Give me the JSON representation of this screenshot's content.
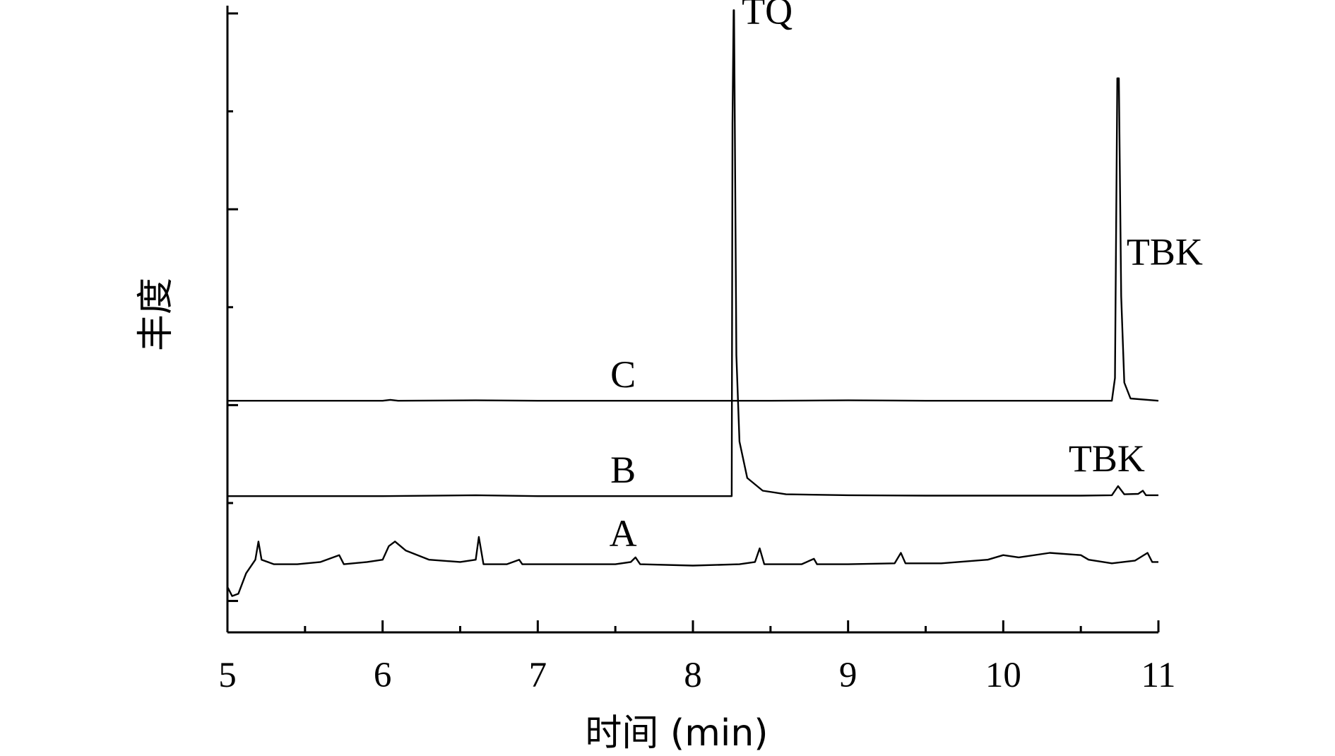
{
  "chart_data": {
    "type": "line",
    "xlabel": "时间 (min)",
    "ylabel": "丰度",
    "xlim": [
      5,
      11
    ],
    "x_ticks": [
      "5",
      "6",
      "7",
      "8",
      "9",
      "10",
      "11"
    ],
    "grid": false,
    "y_tick_labels": "none",
    "series": [
      {
        "name": "A",
        "points": [
          [
            5.0,
            0.1
          ],
          [
            5.03,
            0.08
          ],
          [
            5.07,
            0.085
          ],
          [
            5.12,
            0.13
          ],
          [
            5.18,
            0.16
          ],
          [
            5.2,
            0.2
          ],
          [
            5.22,
            0.16
          ],
          [
            5.3,
            0.15
          ],
          [
            5.45,
            0.15
          ],
          [
            5.6,
            0.155
          ],
          [
            5.72,
            0.17
          ],
          [
            5.75,
            0.15
          ],
          [
            5.9,
            0.155
          ],
          [
            6.0,
            0.16
          ],
          [
            6.04,
            0.19
          ],
          [
            6.08,
            0.2
          ],
          [
            6.15,
            0.18
          ],
          [
            6.3,
            0.16
          ],
          [
            6.5,
            0.155
          ],
          [
            6.6,
            0.16
          ],
          [
            6.62,
            0.21
          ],
          [
            6.65,
            0.15
          ],
          [
            6.8,
            0.15
          ],
          [
            6.88,
            0.16
          ],
          [
            6.9,
            0.15
          ],
          [
            7.2,
            0.15
          ],
          [
            7.5,
            0.15
          ],
          [
            7.6,
            0.155
          ],
          [
            7.63,
            0.165
          ],
          [
            7.66,
            0.15
          ],
          [
            8.0,
            0.147
          ],
          [
            8.3,
            0.15
          ],
          [
            8.4,
            0.155
          ],
          [
            8.43,
            0.185
          ],
          [
            8.46,
            0.15
          ],
          [
            8.7,
            0.15
          ],
          [
            8.78,
            0.162
          ],
          [
            8.8,
            0.15
          ],
          [
            9.0,
            0.15
          ],
          [
            9.3,
            0.152
          ],
          [
            9.34,
            0.175
          ],
          [
            9.37,
            0.152
          ],
          [
            9.6,
            0.152
          ],
          [
            9.9,
            0.16
          ],
          [
            10.0,
            0.17
          ],
          [
            10.1,
            0.165
          ],
          [
            10.3,
            0.175
          ],
          [
            10.5,
            0.17
          ],
          [
            10.55,
            0.16
          ],
          [
            10.7,
            0.152
          ],
          [
            10.85,
            0.158
          ],
          [
            10.93,
            0.175
          ],
          [
            10.96,
            0.155
          ],
          [
            11.0,
            0.155
          ]
        ]
      },
      {
        "name": "B",
        "points": [
          [
            5.0,
            0.3
          ],
          [
            5.5,
            0.3
          ],
          [
            6.0,
            0.3
          ],
          [
            6.6,
            0.302
          ],
          [
            7.0,
            0.3
          ],
          [
            7.5,
            0.3
          ],
          [
            8.0,
            0.3
          ],
          [
            8.25,
            0.3
          ],
          [
            8.255,
            1.12
          ],
          [
            8.262,
            1.37
          ],
          [
            8.265,
            1.37
          ],
          [
            8.27,
            1.12
          ],
          [
            8.28,
            0.61
          ],
          [
            8.3,
            0.42
          ],
          [
            8.35,
            0.34
          ],
          [
            8.45,
            0.312
          ],
          [
            8.6,
            0.304
          ],
          [
            9.0,
            0.302
          ],
          [
            9.5,
            0.301
          ],
          [
            10.0,
            0.301
          ],
          [
            10.5,
            0.301
          ],
          [
            10.7,
            0.302
          ],
          [
            10.74,
            0.322
          ],
          [
            10.78,
            0.304
          ],
          [
            10.87,
            0.305
          ],
          [
            10.9,
            0.312
          ],
          [
            10.92,
            0.302
          ],
          [
            11.0,
            0.302
          ]
        ]
      },
      {
        "name": "C",
        "points": [
          [
            5.0,
            0.51
          ],
          [
            6.0,
            0.51
          ],
          [
            6.05,
            0.512
          ],
          [
            6.1,
            0.51
          ],
          [
            6.6,
            0.511
          ],
          [
            7.0,
            0.51
          ],
          [
            8.0,
            0.51
          ],
          [
            8.5,
            0.51
          ],
          [
            9.0,
            0.511
          ],
          [
            9.5,
            0.51
          ],
          [
            10.0,
            0.51
          ],
          [
            10.5,
            0.51
          ],
          [
            10.7,
            0.51
          ],
          [
            10.72,
            0.56
          ],
          [
            10.735,
            1.22
          ],
          [
            10.745,
            1.22
          ],
          [
            10.76,
            0.74
          ],
          [
            10.78,
            0.55
          ],
          [
            10.82,
            0.515
          ],
          [
            11.0,
            0.51
          ]
        ]
      }
    ],
    "annotations": [
      {
        "text": "TQ",
        "x": 8.26,
        "y": 1.34
      },
      {
        "text": "TBK",
        "x": 10.74,
        "y": 0.81
      },
      {
        "text": "TBK",
        "x": 10.74,
        "y": 0.355
      },
      {
        "text": "C",
        "x": 7.55,
        "y": 0.54
      },
      {
        "text": "B",
        "x": 7.55,
        "y": 0.33
      },
      {
        "text": "A",
        "x": 7.55,
        "y": 0.19
      }
    ]
  }
}
